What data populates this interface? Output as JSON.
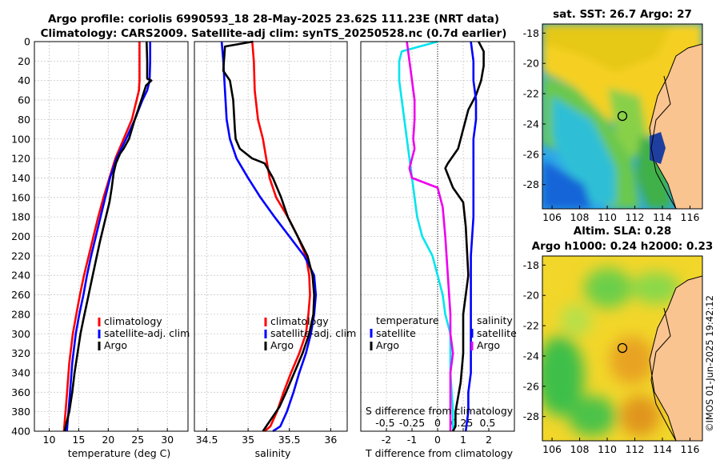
{
  "header": {
    "title_line1": "Argo profile: coriolis 6990593_18 28-May-2025 23.62S 111.23E (NRT data)",
    "title_line2": "Climatology: CARS2009. Satellite-adj clim: synTS_20250528.nc (0.7d earlier)"
  },
  "credit": "©IMOS 01-Jun-2025 19:42:12",
  "colors": {
    "climatology": "#ff0000",
    "satellite": "#0000ff",
    "argo": "#000000",
    "t_diff": "#00e5ee",
    "s_diff": "#ee00ee",
    "land": "#f9c48f"
  },
  "chart_data": [
    {
      "type": "line",
      "id": "temperature",
      "xlabel": "temperature (deg C)",
      "ylabel": "",
      "xlim": [
        7.5,
        33.5
      ],
      "ylim": [
        400,
        0
      ],
      "xticks": [
        10,
        15,
        20,
        25,
        30
      ],
      "yticks": [
        0,
        20,
        40,
        60,
        80,
        100,
        120,
        140,
        160,
        180,
        200,
        220,
        240,
        260,
        280,
        300,
        320,
        340,
        360,
        380,
        400
      ],
      "series": [
        {
          "name": "climatology",
          "color": "#ff0000",
          "x": [
            25.3,
            25.3,
            25.3,
            25.2,
            24.8,
            24.0,
            22.6,
            21.2,
            20.2,
            19.2,
            18.3,
            17.5,
            16.7,
            15.9,
            15.2,
            14.6,
            14.0,
            13.4,
            12.9,
            12.5
          ],
          "depth": [
            0,
            20,
            40,
            50,
            60,
            80,
            100,
            120,
            140,
            160,
            180,
            200,
            220,
            240,
            260,
            280,
            300,
            330,
            370,
            400
          ]
        },
        {
          "name": "satellite-adj. clim",
          "color": "#0000ff",
          "x": [
            27.1,
            27.1,
            27.0,
            26.6,
            25.8,
            24.5,
            23.0,
            21.4,
            20.3,
            19.5,
            18.7,
            17.9,
            17.1,
            16.4,
            15.8,
            15.1,
            14.5,
            13.9,
            13.4,
            13.0
          ],
          "depth": [
            0,
            20,
            40,
            50,
            60,
            80,
            100,
            120,
            140,
            160,
            180,
            200,
            220,
            240,
            260,
            280,
            300,
            330,
            370,
            400
          ]
        },
        {
          "name": "Argo",
          "color": "#000000",
          "x": [
            26.5,
            26.6,
            26.6,
            27.3,
            26.4,
            25.6,
            24.5,
            23.5,
            22.6,
            22.0,
            21.3,
            20.9,
            20.6,
            20.2,
            19.4,
            18.6,
            17.9,
            17.2,
            16.5,
            15.8,
            15.3,
            14.8,
            14.3,
            13.9,
            13.4,
            13.0,
            12.6
          ],
          "depth": [
            0,
            20,
            38,
            40,
            45,
            60,
            80,
            100,
            110,
            115,
            125,
            135,
            150,
            165,
            185,
            205,
            225,
            245,
            265,
            285,
            300,
            320,
            340,
            360,
            380,
            390,
            400
          ]
        }
      ],
      "legend": [
        "climatology",
        "satellite-adj. clim",
        "Argo"
      ]
    },
    {
      "type": "line",
      "id": "salinity",
      "xlabel": "salinity",
      "ylabel": "",
      "xlim": [
        34.35,
        36.2
      ],
      "ylim": [
        400,
        0
      ],
      "xticks": [
        34.5,
        35,
        35.5,
        36
      ],
      "xtick_labels": [
        "34.5",
        "35",
        "35.5",
        "36"
      ],
      "series": [
        {
          "name": "climatology",
          "color": "#ff0000",
          "x": [
            35.05,
            35.07,
            35.08,
            35.12,
            35.18,
            35.22,
            35.26,
            35.34,
            35.48,
            35.6,
            35.7,
            35.74,
            35.75,
            35.73,
            35.7,
            35.62,
            35.52,
            35.43,
            35.35,
            35.27,
            35.2
          ],
          "depth": [
            0,
            20,
            50,
            80,
            100,
            120,
            140,
            160,
            180,
            200,
            220,
            240,
            260,
            280,
            300,
            320,
            340,
            360,
            380,
            395,
            400
          ]
        },
        {
          "name": "satellite-adj. clim",
          "color": "#0000ff",
          "x": [
            34.68,
            34.7,
            34.72,
            34.74,
            34.78,
            34.86,
            35.0,
            35.15,
            35.32,
            35.5,
            35.68,
            35.8,
            35.82,
            35.8,
            35.76,
            35.7,
            35.62,
            35.55,
            35.47,
            35.39,
            35.3
          ],
          "depth": [
            0,
            20,
            50,
            80,
            100,
            120,
            140,
            160,
            180,
            200,
            220,
            240,
            260,
            280,
            300,
            320,
            340,
            360,
            380,
            395,
            400
          ]
        },
        {
          "name": "Argo",
          "color": "#000000",
          "x": [
            35.06,
            34.72,
            34.7,
            34.78,
            34.82,
            34.84,
            34.85,
            34.9,
            35.05,
            35.2,
            35.3,
            35.4,
            35.48,
            35.6,
            35.72,
            35.78,
            35.8,
            35.79,
            35.74,
            35.66,
            35.56,
            35.46,
            35.38,
            35.3,
            35.22,
            35.18
          ],
          "depth": [
            0,
            5,
            30,
            40,
            60,
            90,
            100,
            110,
            120,
            125,
            140,
            160,
            180,
            200,
            220,
            240,
            260,
            280,
            300,
            320,
            340,
            360,
            375,
            385,
            395,
            400
          ]
        }
      ],
      "legend": [
        "climatology",
        "satellite-adj. clim",
        "Argo"
      ]
    },
    {
      "type": "line",
      "id": "difference",
      "xlabel": "T difference from climatology",
      "top_label": "S difference from climatology",
      "xlim": [
        -3.0,
        3.0
      ],
      "ylim": [
        400,
        0
      ],
      "xticks": [
        -2,
        -1,
        0,
        1,
        2
      ],
      "top_ticks": [
        -0.5,
        -0.25,
        0,
        0.25,
        0.5
      ],
      "top_tick_labels": [
        "-0.5",
        "-0.25",
        "0",
        "0.25",
        "0.5"
      ],
      "series": [
        {
          "name": "temperature satellite",
          "color": "#00e5ee",
          "x": [
            0.0,
            -1.4,
            -1.5,
            -1.5,
            -1.4,
            -1.3,
            -1.2,
            -1.1,
            -1.0,
            -0.9,
            -0.8,
            -0.6,
            -0.4,
            -0.2,
            0.0,
            0.2,
            0.3,
            0.5,
            0.5,
            0.6,
            0.6
          ],
          "depth": [
            0,
            10,
            20,
            40,
            60,
            80,
            100,
            120,
            140,
            160,
            180,
            200,
            210,
            220,
            240,
            260,
            280,
            300,
            340,
            380,
            400
          ]
        },
        {
          "name": "temperature Argo",
          "color": "#000000",
          "x": [
            1.6,
            1.8,
            1.8,
            1.7,
            1.5,
            1.2,
            1.1,
            0.9,
            0.8,
            0.4,
            0.3,
            0.6,
            1.0,
            1.1,
            1.2,
            1.1,
            1.0,
            1.0,
            1.0,
            0.9,
            0.7,
            0.7,
            0.6
          ],
          "depth": [
            0,
            10,
            25,
            40,
            55,
            70,
            80,
            100,
            110,
            125,
            130,
            150,
            165,
            190,
            240,
            260,
            280,
            300,
            320,
            350,
            380,
            395,
            400
          ]
        },
        {
          "name": "salinity satellite",
          "color": "#ee00ee",
          "x": [
            -1.2,
            -1.1,
            -1.0,
            -0.9,
            -0.9,
            -0.95,
            -0.9,
            -1.0,
            -1.1,
            -1.0,
            0.0,
            0.2,
            0.3,
            0.4,
            0.5,
            0.5,
            0.6,
            0.5,
            0.5,
            0.5
          ],
          "depth": [
            0,
            20,
            40,
            60,
            80,
            100,
            110,
            120,
            130,
            140,
            150,
            170,
            200,
            240,
            280,
            300,
            320,
            340,
            380,
            400
          ]
        },
        {
          "name": "salinity Argo",
          "color": "#0000ff",
          "x": [
            1.3,
            1.4,
            1.4,
            1.5,
            1.5,
            1.4,
            1.4,
            1.4,
            1.3,
            1.3,
            1.3,
            1.3,
            1.3,
            1.2,
            1.2,
            1.1
          ],
          "depth": [
            0,
            20,
            40,
            60,
            80,
            100,
            140,
            180,
            220,
            260,
            300,
            320,
            340,
            360,
            380,
            400
          ]
        }
      ],
      "legend": {
        "left_title": "temperature",
        "right_title": "salinity",
        "entries": [
          "satellite",
          "Argo",
          "satellite",
          "Argo"
        ]
      }
    }
  ],
  "maps": [
    {
      "id": "sst-map",
      "title": "sat. SST: 26.7 Argo: 27",
      "yticks": [
        -18,
        -20,
        -22,
        -24,
        -26,
        -28
      ],
      "xticks": [
        106,
        108,
        110,
        112,
        114,
        116
      ],
      "marker": {
        "lon": 111.23,
        "lat": -23.62
      }
    },
    {
      "id": "sla-map",
      "title_line1": "Altim. SLA: 0.28",
      "title_line2": "Argo h1000: 0.24 h2000: 0.23",
      "yticks": [
        -18,
        -20,
        -22,
        -24,
        -26,
        -28
      ],
      "xticks": [
        106,
        108,
        110,
        112,
        114,
        116
      ],
      "marker": {
        "lon": 111.23,
        "lat": -23.62
      }
    }
  ]
}
